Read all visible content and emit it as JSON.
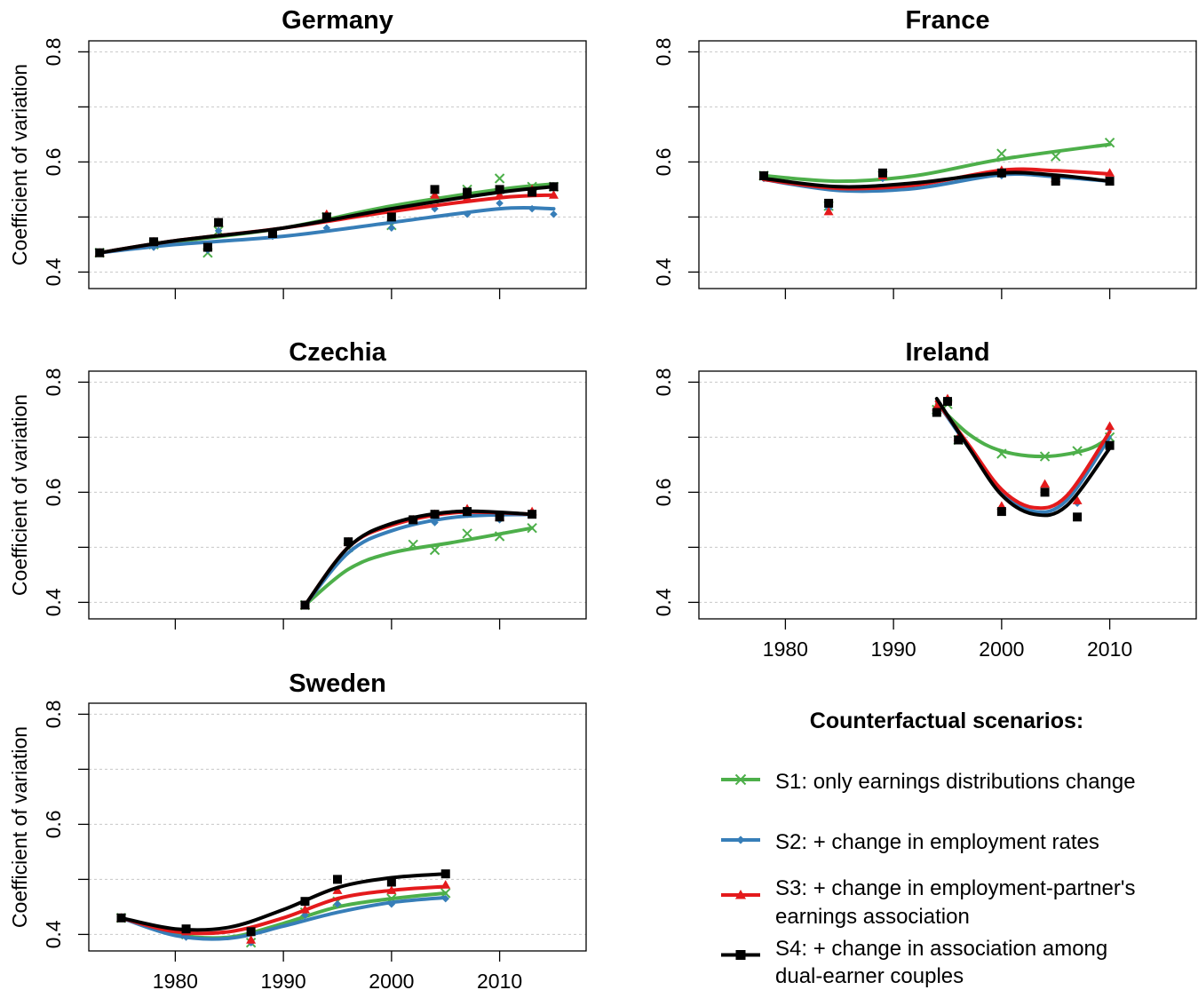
{
  "colors": {
    "S1": "#4daf4a",
    "S2": "#377eb8",
    "S3": "#e41a1c",
    "S4": "#000000",
    "grid": "#c8c8c8"
  },
  "legend": {
    "title": "Counterfactual scenarios:",
    "items": [
      {
        "key": "S1",
        "marker": "x-marker",
        "lines": [
          "S1: only earnings distributions change"
        ]
      },
      {
        "key": "S2",
        "marker": "diamond-marker",
        "lines": [
          "S2: + change in employment rates"
        ]
      },
      {
        "key": "S3",
        "marker": "triangle-marker",
        "lines": [
          "S3: + change in employment-partner's",
          "earnings association"
        ]
      },
      {
        "key": "S4",
        "marker": "square-marker",
        "lines": [
          "S4: + change in association among",
          "dual-earner couples"
        ]
      }
    ]
  },
  "chart_data": [
    {
      "type": "line",
      "title": "Germany",
      "ylabel": "Coefficient of variation",
      "xlim": [
        1972,
        2018
      ],
      "ylim": [
        0.37,
        0.82
      ],
      "yticks": [
        "0.4",
        "0.6",
        "0.8"
      ],
      "xticks": [
        "1980",
        "1990",
        "2000",
        "2010"
      ],
      "show_x_tick_labels": false,
      "grid": true,
      "series": [
        {
          "key": "S1",
          "x": [
            1973,
            1978,
            1983,
            1984,
            1989,
            1994,
            2000,
            2004,
            2007,
            2010,
            2013,
            2015
          ],
          "y": [
            0.435,
            0.45,
            0.435,
            0.475,
            0.47,
            0.5,
            0.485,
            0.53,
            0.55,
            0.57,
            0.555,
            0.555
          ],
          "curve": [
            [
              1973,
              0.435
            ],
            [
              1980,
              0.455
            ],
            [
              1990,
              0.48
            ],
            [
              2000,
              0.52
            ],
            [
              2010,
              0.55
            ],
            [
              2015,
              0.56
            ]
          ]
        },
        {
          "key": "S2",
          "x": [
            1973,
            1978,
            1983,
            1984,
            1989,
            1994,
            2000,
            2004,
            2007,
            2010,
            2013,
            2015
          ],
          "y": [
            0.435,
            0.445,
            0.44,
            0.475,
            0.465,
            0.48,
            0.48,
            0.515,
            0.505,
            0.525,
            0.515,
            0.505
          ],
          "curve": [
            [
              1973,
              0.435
            ],
            [
              1980,
              0.45
            ],
            [
              1990,
              0.465
            ],
            [
              2000,
              0.49
            ],
            [
              2010,
              0.515
            ],
            [
              2015,
              0.515
            ]
          ]
        },
        {
          "key": "S3",
          "x": [
            1973,
            1978,
            1983,
            1984,
            1989,
            1994,
            2000,
            2004,
            2007,
            2010,
            2013,
            2015
          ],
          "y": [
            0.435,
            0.455,
            0.445,
            0.49,
            0.47,
            0.505,
            0.5,
            0.54,
            0.535,
            0.54,
            0.55,
            0.54
          ],
          "curve": [
            [
              1973,
              0.435
            ],
            [
              1980,
              0.457
            ],
            [
              1990,
              0.48
            ],
            [
              2000,
              0.51
            ],
            [
              2010,
              0.535
            ],
            [
              2015,
              0.54
            ]
          ]
        },
        {
          "key": "S4",
          "x": [
            1973,
            1978,
            1983,
            1984,
            1989,
            1994,
            2000,
            2004,
            2007,
            2010,
            2013,
            2015
          ],
          "y": [
            0.435,
            0.455,
            0.445,
            0.49,
            0.47,
            0.5,
            0.5,
            0.55,
            0.545,
            0.55,
            0.545,
            0.555
          ],
          "curve": [
            [
              1973,
              0.435
            ],
            [
              1980,
              0.457
            ],
            [
              1990,
              0.48
            ],
            [
              2000,
              0.515
            ],
            [
              2010,
              0.545
            ],
            [
              2015,
              0.555
            ]
          ]
        }
      ]
    },
    {
      "type": "line",
      "title": "France",
      "ylabel": "",
      "xlim": [
        1972,
        2018
      ],
      "ylim": [
        0.37,
        0.82
      ],
      "yticks": [
        "0.4",
        "0.6",
        "0.8"
      ],
      "xticks": [
        "1980",
        "1990",
        "2000",
        "2010"
      ],
      "show_x_tick_labels": false,
      "grid": true,
      "series": [
        {
          "key": "S1",
          "x": [
            1978,
            1984,
            1989,
            2000,
            2005,
            2010
          ],
          "y": [
            0.575,
            0.52,
            0.575,
            0.615,
            0.61,
            0.635
          ],
          "curve": [
            [
              1978,
              0.575
            ],
            [
              1985,
              0.565
            ],
            [
              1992,
              0.575
            ],
            [
              2000,
              0.605
            ],
            [
              2010,
              0.632
            ]
          ]
        },
        {
          "key": "S2",
          "x": [
            1978,
            1984,
            1989,
            2000,
            2005,
            2010
          ],
          "y": [
            0.57,
            0.515,
            0.57,
            0.575,
            0.565,
            0.565
          ],
          "curve": [
            [
              1978,
              0.568
            ],
            [
              1985,
              0.548
            ],
            [
              1992,
              0.552
            ],
            [
              2000,
              0.577
            ],
            [
              2005,
              0.573
            ],
            [
              2010,
              0.565
            ]
          ]
        },
        {
          "key": "S3",
          "x": [
            1978,
            1984,
            1989,
            2000,
            2005,
            2010
          ],
          "y": [
            0.575,
            0.51,
            0.575,
            0.585,
            0.57,
            0.58
          ],
          "curve": [
            [
              1978,
              0.568
            ],
            [
              1985,
              0.552
            ],
            [
              1992,
              0.558
            ],
            [
              2000,
              0.585
            ],
            [
              2005,
              0.584
            ],
            [
              2010,
              0.578
            ]
          ]
        },
        {
          "key": "S4",
          "x": [
            1978,
            1984,
            1989,
            2000,
            2005,
            2010
          ],
          "y": [
            0.575,
            0.525,
            0.58,
            0.58,
            0.565,
            0.565
          ],
          "curve": [
            [
              1978,
              0.57
            ],
            [
              1985,
              0.555
            ],
            [
              1992,
              0.562
            ],
            [
              2000,
              0.58
            ],
            [
              2005,
              0.576
            ],
            [
              2010,
              0.565
            ]
          ]
        }
      ]
    },
    {
      "type": "line",
      "title": "Czechia",
      "ylabel": "Coefficient of variation",
      "xlim": [
        1972,
        2018
      ],
      "ylim": [
        0.37,
        0.82
      ],
      "yticks": [
        "0.4",
        "0.6",
        "0.8"
      ],
      "xticks": [
        "1980",
        "1990",
        "2000",
        "2010"
      ],
      "show_x_tick_labels": false,
      "grid": true,
      "series": [
        {
          "key": "S1",
          "x": [
            1992,
            1996,
            2002,
            2004,
            2007,
            2010,
            2013
          ],
          "y": [
            0.395,
            0.5,
            0.505,
            0.495,
            0.525,
            0.52,
            0.535
          ],
          "curve": [
            [
              1992,
              0.395
            ],
            [
              1996,
              0.46
            ],
            [
              2000,
              0.49
            ],
            [
              2006,
              0.51
            ],
            [
              2013,
              0.535
            ]
          ]
        },
        {
          "key": "S2",
          "x": [
            1992,
            1996,
            2002,
            2004,
            2007,
            2010,
            2013
          ],
          "y": [
            0.395,
            0.505,
            0.545,
            0.545,
            0.56,
            0.55,
            0.56
          ],
          "curve": [
            [
              1992,
              0.395
            ],
            [
              1996,
              0.49
            ],
            [
              2000,
              0.53
            ],
            [
              2006,
              0.555
            ],
            [
              2013,
              0.56
            ]
          ]
        },
        {
          "key": "S3",
          "x": [
            1992,
            1996,
            2002,
            2004,
            2007,
            2010,
            2013
          ],
          "y": [
            0.395,
            0.51,
            0.55,
            0.56,
            0.57,
            0.555,
            0.565
          ],
          "curve": [
            [
              1992,
              0.395
            ],
            [
              1996,
              0.5
            ],
            [
              2000,
              0.54
            ],
            [
              2006,
              0.563
            ],
            [
              2013,
              0.56
            ]
          ]
        },
        {
          "key": "S4",
          "x": [
            1992,
            1996,
            2002,
            2004,
            2007,
            2010,
            2013
          ],
          "y": [
            0.395,
            0.51,
            0.55,
            0.56,
            0.565,
            0.555,
            0.56
          ],
          "curve": [
            [
              1992,
              0.395
            ],
            [
              1996,
              0.5
            ],
            [
              2000,
              0.543
            ],
            [
              2006,
              0.565
            ],
            [
              2013,
              0.56
            ]
          ]
        }
      ]
    },
    {
      "type": "line",
      "title": "Ireland",
      "ylabel": "",
      "xlim": [
        1972,
        2018
      ],
      "ylim": [
        0.37,
        0.82
      ],
      "yticks": [
        "0.4",
        "0.6",
        "0.8"
      ],
      "xticks": [
        "1980",
        "1990",
        "2000",
        "2010"
      ],
      "show_x_tick_labels": true,
      "grid": true,
      "series": [
        {
          "key": "S1",
          "x": [
            1994,
            1995,
            1996,
            2000,
            2004,
            2007,
            2010
          ],
          "y": [
            0.75,
            0.76,
            0.695,
            0.67,
            0.665,
            0.675,
            0.7
          ],
          "curve": [
            [
              1994,
              0.76
            ],
            [
              1997,
              0.705
            ],
            [
              2000,
              0.675
            ],
            [
              2004,
              0.665
            ],
            [
              2008,
              0.678
            ],
            [
              2010,
              0.7
            ]
          ]
        },
        {
          "key": "S2",
          "x": [
            1994,
            1995,
            1996,
            2000,
            2004,
            2007,
            2010
          ],
          "y": [
            0.75,
            0.765,
            0.7,
            0.565,
            0.6,
            0.58,
            0.715
          ],
          "curve": [
            [
              1994,
              0.765
            ],
            [
              1997,
              0.68
            ],
            [
              2000,
              0.6
            ],
            [
              2003,
              0.565
            ],
            [
              2006,
              0.585
            ],
            [
              2010,
              0.7
            ]
          ]
        },
        {
          "key": "S3",
          "x": [
            1994,
            1995,
            1996,
            2000,
            2004,
            2007,
            2010
          ],
          "y": [
            0.755,
            0.77,
            0.7,
            0.575,
            0.615,
            0.585,
            0.72
          ],
          "curve": [
            [
              1994,
              0.765
            ],
            [
              1997,
              0.685
            ],
            [
              2000,
              0.605
            ],
            [
              2003,
              0.572
            ],
            [
              2006,
              0.593
            ],
            [
              2010,
              0.71
            ]
          ]
        },
        {
          "key": "S4",
          "x": [
            1994,
            1995,
            1996,
            2000,
            2004,
            2007,
            2010
          ],
          "y": [
            0.745,
            0.765,
            0.695,
            0.565,
            0.6,
            0.555,
            0.685
          ],
          "curve": [
            [
              1994,
              0.77
            ],
            [
              1997,
              0.68
            ],
            [
              2000,
              0.595
            ],
            [
              2003,
              0.56
            ],
            [
              2006,
              0.575
            ],
            [
              2010,
              0.68
            ]
          ]
        }
      ]
    },
    {
      "type": "line",
      "title": "Sweden",
      "ylabel": "Coefficient of variation",
      "xlim": [
        1972,
        2018
      ],
      "ylim": [
        0.37,
        0.82
      ],
      "yticks": [
        "0.4",
        "0.6",
        "0.8"
      ],
      "xticks": [
        "1980",
        "1990",
        "2000",
        "2010"
      ],
      "show_x_tick_labels": true,
      "grid": true,
      "series": [
        {
          "key": "S1",
          "x": [
            1975,
            1981,
            1987,
            1992,
            1995,
            2000,
            2005
          ],
          "y": [
            0.43,
            0.4,
            0.385,
            0.44,
            0.46,
            0.465,
            0.475
          ],
          "curve": [
            [
              1975,
              0.43
            ],
            [
              1980,
              0.4
            ],
            [
              1985,
              0.395
            ],
            [
              1990,
              0.42
            ],
            [
              1995,
              0.45
            ],
            [
              2000,
              0.465
            ],
            [
              2005,
              0.475
            ]
          ]
        },
        {
          "key": "S2",
          "x": [
            1975,
            1981,
            1987,
            1992,
            1995,
            2000,
            2005
          ],
          "y": [
            0.43,
            0.395,
            0.385,
            0.435,
            0.455,
            0.455,
            0.465
          ],
          "curve": [
            [
              1975,
              0.43
            ],
            [
              1980,
              0.398
            ],
            [
              1985,
              0.393
            ],
            [
              1990,
              0.415
            ],
            [
              1995,
              0.44
            ],
            [
              2000,
              0.458
            ],
            [
              2005,
              0.467
            ]
          ]
        },
        {
          "key": "S3",
          "x": [
            1975,
            1981,
            1987,
            1992,
            1995,
            2000,
            2005
          ],
          "y": [
            0.43,
            0.405,
            0.39,
            0.445,
            0.48,
            0.48,
            0.49
          ],
          "curve": [
            [
              1975,
              0.43
            ],
            [
              1980,
              0.405
            ],
            [
              1985,
              0.405
            ],
            [
              1990,
              0.43
            ],
            [
              1995,
              0.465
            ],
            [
              2000,
              0.48
            ],
            [
              2005,
              0.487
            ]
          ]
        },
        {
          "key": "S4",
          "x": [
            1975,
            1981,
            1987,
            1992,
            1995,
            2000,
            2005
          ],
          "y": [
            0.43,
            0.41,
            0.405,
            0.46,
            0.5,
            0.495,
            0.51
          ],
          "curve": [
            [
              1975,
              0.43
            ],
            [
              1980,
              0.41
            ],
            [
              1985,
              0.413
            ],
            [
              1990,
              0.445
            ],
            [
              1995,
              0.485
            ],
            [
              2000,
              0.503
            ],
            [
              2005,
              0.51
            ]
          ]
        }
      ]
    }
  ]
}
